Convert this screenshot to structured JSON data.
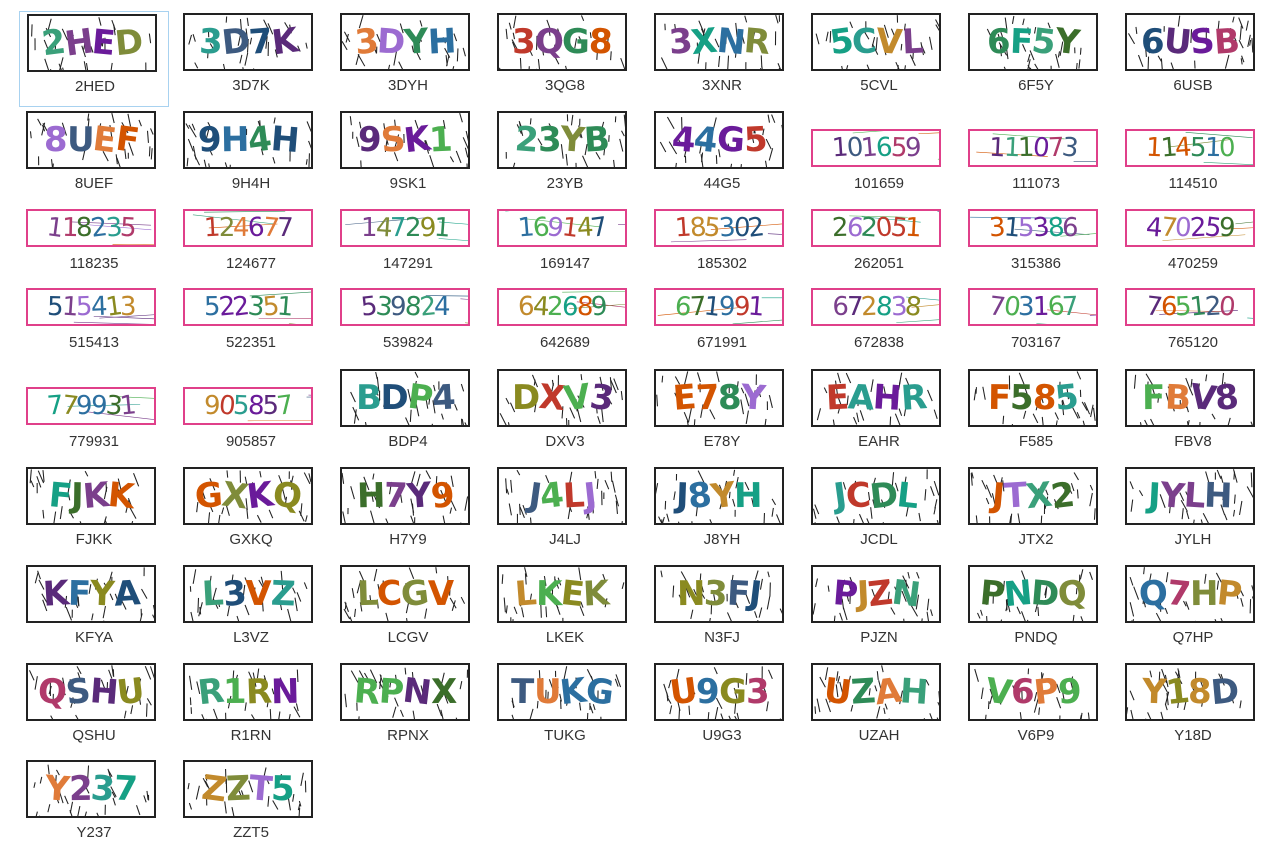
{
  "items": [
    {
      "name": "2HED",
      "type": "letter",
      "selected": true
    },
    {
      "name": "3D7K",
      "type": "letter"
    },
    {
      "name": "3DYH",
      "type": "letter"
    },
    {
      "name": "3QG8",
      "type": "letter"
    },
    {
      "name": "3XNR",
      "type": "letter"
    },
    {
      "name": "5CVL",
      "type": "letter"
    },
    {
      "name": "6F5Y",
      "type": "letter"
    },
    {
      "name": "6USB",
      "type": "letter"
    },
    {
      "name": "8UEF",
      "type": "letter"
    },
    {
      "name": "9H4H",
      "type": "letter"
    },
    {
      "name": "9SK1",
      "type": "letter"
    },
    {
      "name": "23YB",
      "type": "letter"
    },
    {
      "name": "44G5",
      "type": "letter"
    },
    {
      "name": "101659",
      "type": "digit"
    },
    {
      "name": "111073",
      "type": "digit"
    },
    {
      "name": "114510",
      "type": "digit"
    },
    {
      "name": "118235",
      "type": "digit"
    },
    {
      "name": "124677",
      "type": "digit"
    },
    {
      "name": "147291",
      "type": "digit"
    },
    {
      "name": "169147",
      "type": "digit"
    },
    {
      "name": "185302",
      "type": "digit"
    },
    {
      "name": "262051",
      "type": "digit"
    },
    {
      "name": "315386",
      "type": "digit"
    },
    {
      "name": "470259",
      "type": "digit"
    },
    {
      "name": "515413",
      "type": "digit"
    },
    {
      "name": "522351",
      "type": "digit"
    },
    {
      "name": "539824",
      "type": "digit"
    },
    {
      "name": "642689",
      "type": "digit"
    },
    {
      "name": "671991",
      "type": "digit"
    },
    {
      "name": "672838",
      "type": "digit"
    },
    {
      "name": "703167",
      "type": "digit"
    },
    {
      "name": "765120",
      "type": "digit"
    },
    {
      "name": "779931",
      "type": "digit"
    },
    {
      "name": "905857",
      "type": "digit"
    },
    {
      "name": "BDP4",
      "type": "letter"
    },
    {
      "name": "DXV3",
      "type": "letter"
    },
    {
      "name": "E78Y",
      "type": "letter"
    },
    {
      "name": "EAHR",
      "type": "letter"
    },
    {
      "name": "F585",
      "type": "letter"
    },
    {
      "name": "FBV8",
      "type": "letter"
    },
    {
      "name": "FJKK",
      "type": "letter"
    },
    {
      "name": "GXKQ",
      "type": "letter"
    },
    {
      "name": "H7Y9",
      "type": "letter"
    },
    {
      "name": "J4LJ",
      "type": "letter"
    },
    {
      "name": "J8YH",
      "type": "letter"
    },
    {
      "name": "JCDL",
      "type": "letter"
    },
    {
      "name": "JTX2",
      "type": "letter"
    },
    {
      "name": "JYLH",
      "type": "letter"
    },
    {
      "name": "KFYA",
      "type": "letter"
    },
    {
      "name": "L3VZ",
      "type": "letter"
    },
    {
      "name": "LCGV",
      "type": "letter"
    },
    {
      "name": "LKEK",
      "type": "letter"
    },
    {
      "name": "N3FJ",
      "type": "letter"
    },
    {
      "name": "PJZN",
      "type": "letter"
    },
    {
      "name": "PNDQ",
      "type": "letter"
    },
    {
      "name": "Q7HP",
      "type": "letter"
    },
    {
      "name": "QSHU",
      "type": "letter"
    },
    {
      "name": "R1RN",
      "type": "letter"
    },
    {
      "name": "RPNX",
      "type": "letter"
    },
    {
      "name": "TUKG",
      "type": "letter"
    },
    {
      "name": "U9G3",
      "type": "letter"
    },
    {
      "name": "UZAH",
      "type": "letter"
    },
    {
      "name": "V6P9",
      "type": "letter"
    },
    {
      "name": "Y18D",
      "type": "letter"
    },
    {
      "name": "Y237",
      "type": "letter"
    },
    {
      "name": "ZZT5",
      "type": "letter"
    }
  ],
  "colors": {
    "letter_border": "#222222",
    "digit_border": "#e0408a",
    "label": "#333333",
    "selection": "#a8d2f0",
    "glyph_palette": [
      "#2e8b57",
      "#7b3f8c",
      "#2c6fa0",
      "#3aa07a",
      "#3b6e2a",
      "#c0392b",
      "#8a8a20",
      "#5a2a7a",
      "#1f4e79",
      "#2a9d8f",
      "#6a1b9a",
      "#e07b39",
      "#4caf50",
      "#9c6bd1",
      "#d35400",
      "#16a085",
      "#7f8c3a",
      "#b03a6a",
      "#3d5a80",
      "#c28a2c"
    ]
  }
}
